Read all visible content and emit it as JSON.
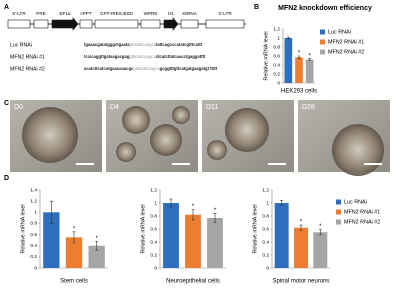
{
  "panels": {
    "a": "A",
    "b": "B",
    "c": "C",
    "d": "D"
  },
  "diagram": {
    "elements": [
      "5'-LTR",
      "PRE",
      "EF1α",
      "cPPT",
      "GFP-IRES-BSD",
      "WPRE",
      "H1",
      "shRNA",
      "3'-LTR"
    ],
    "constructs": [
      {
        "label": "Luc RNAi",
        "sequence": [
          "tgaaacgatatgggctgaata",
          "gttatattcaagca",
          "tattcagcccatatcgtttcattt"
        ]
      },
      {
        "label": "MFN2 RNAi #1",
        "sequence": [
          "tccicaggttgataagacgag",
          "gttatattcaagca",
          "ctcatcttatcaacctgaggatttt"
        ]
      },
      {
        "label": "MFN2 RNAi #2",
        "sequence": [
          "acatcttcatcatgaacaaacgc",
          "gttatattcaagca",
          "gcggtttgttcatgatgaagatgt ttttt"
        ]
      }
    ]
  },
  "images": [
    {
      "label": "D0"
    },
    {
      "label": "D4"
    },
    {
      "label": "D11"
    },
    {
      "label": "D28"
    }
  ],
  "chart_data": [
    {
      "type": "bar",
      "title": "MFN2 knockdown efficiency",
      "y_label": "Relative mRNA level",
      "x_label": "HEK293 cells",
      "ylim": [
        0,
        1.2
      ],
      "yticks": [
        0,
        0.2,
        0.4,
        0.6,
        0.8,
        1,
        1.2
      ],
      "legend": "right",
      "series": [
        {
          "name": "Luc RNAi",
          "color": "#2e6fbd",
          "values": [
            1.0
          ],
          "errors": [
            0.02
          ]
        },
        {
          "name": "MFN2 RNAi #1",
          "color": "#ed7d31",
          "values": [
            0.57
          ],
          "errors": [
            0.03
          ],
          "annotation": "*"
        },
        {
          "name": "MFN2 RNAi #2",
          "color": "#a5a5a5",
          "values": [
            0.52
          ],
          "errors": [
            0.02
          ],
          "annotation": "*"
        }
      ]
    },
    {
      "type": "bar",
      "y_label": "Relative mRNA level",
      "x_label": "Stem cells",
      "ylim": [
        0,
        1.4
      ],
      "yticks": [
        0,
        0.2,
        0.4,
        0.6,
        0.8,
        1,
        1.2,
        1.4
      ],
      "series": [
        {
          "color": "#2e6fbd",
          "values": [
            1.0
          ],
          "errors": [
            0.2
          ]
        },
        {
          "color": "#ed7d31",
          "values": [
            0.55
          ],
          "errors": [
            0.1
          ],
          "annotation": "*"
        },
        {
          "color": "#a5a5a5",
          "values": [
            0.4
          ],
          "errors": [
            0.08
          ],
          "annotation": "*"
        }
      ]
    },
    {
      "type": "bar",
      "y_label": "Relative mRNA level",
      "x_label": "Neuroepithelial cells",
      "ylim": [
        0,
        1.2
      ],
      "yticks": [
        0,
        0.2,
        0.4,
        0.6,
        0.8,
        1,
        1.2
      ],
      "series": [
        {
          "color": "#2e6fbd",
          "values": [
            1.0
          ],
          "errors": [
            0.06
          ]
        },
        {
          "color": "#ed7d31",
          "values": [
            0.82
          ],
          "errors": [
            0.08
          ],
          "annotation": "*"
        },
        {
          "color": "#a5a5a5",
          "values": [
            0.77
          ],
          "errors": [
            0.07
          ],
          "annotation": "*"
        }
      ]
    },
    {
      "type": "bar",
      "y_label": "Relative mRNA level",
      "x_label": "Spinal motor neurons",
      "ylim": [
        0,
        1.2
      ],
      "yticks": [
        0,
        0.2,
        0.4,
        0.6,
        0.8,
        1,
        1.2
      ],
      "legend": "right",
      "series": [
        {
          "name": "Luc RNAi",
          "color": "#2e6fbd",
          "values": [
            1.0
          ],
          "errors": [
            0.04
          ]
        },
        {
          "name": "MFN2 RNAi #1",
          "color": "#ed7d31",
          "values": [
            0.62
          ],
          "errors": [
            0.04
          ],
          "annotation": "*"
        },
        {
          "name": "MFN2 RNAi #2",
          "color": "#a5a5a5",
          "values": [
            0.55
          ],
          "errors": [
            0.04
          ],
          "annotation": "*"
        }
      ]
    }
  ]
}
